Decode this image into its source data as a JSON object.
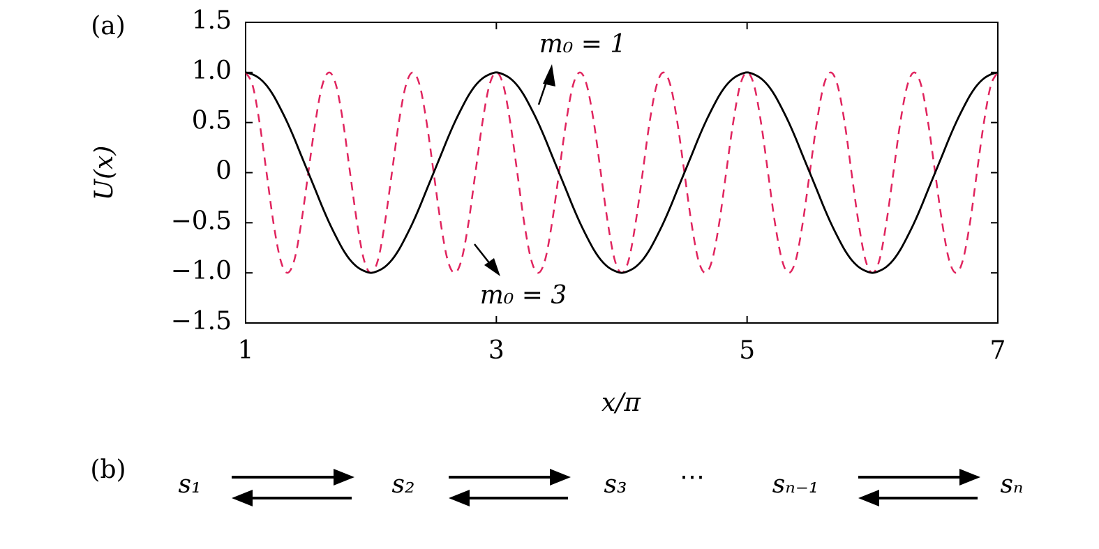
{
  "chart_data": {
    "type": "line",
    "panel_label": "(a)",
    "xlabel": "x/π",
    "ylabel": "U(x)",
    "x": [
      1,
      1.056,
      1.111,
      1.167,
      1.222,
      1.278,
      1.333,
      1.389,
      1.444,
      1.5,
      1.556,
      1.611,
      1.667,
      1.722,
      1.778,
      1.833,
      1.889,
      1.944,
      2,
      2.056,
      2.111,
      2.167,
      2.222,
      2.278,
      2.333,
      2.389,
      2.444,
      2.5,
      2.556,
      2.611,
      2.667,
      2.722,
      2.778,
      2.833,
      2.889,
      2.944,
      3,
      3.056,
      3.111,
      3.167,
      3.222,
      3.278,
      3.333,
      3.389,
      3.444,
      3.5,
      3.556,
      3.611,
      3.667,
      3.722,
      3.778,
      3.833,
      3.889,
      3.944,
      4,
      4.056,
      4.111,
      4.167,
      4.222,
      4.278,
      4.333,
      4.389,
      4.444,
      4.5,
      4.556,
      4.611,
      4.667,
      4.722,
      4.778,
      4.833,
      4.889,
      4.944,
      5,
      5.056,
      5.111,
      5.167,
      5.222,
      5.278,
      5.333,
      5.389,
      5.444,
      5.5,
      5.556,
      5.611,
      5.667,
      5.722,
      5.778,
      5.833,
      5.889,
      5.944,
      6,
      6.056,
      6.111,
      6.167,
      6.222,
      6.278,
      6.333,
      6.389,
      6.444,
      6.5,
      6.556,
      6.611,
      6.667,
      6.722,
      6.778,
      6.833,
      6.889,
      6.944,
      7
    ],
    "series": [
      {
        "color": "#000000",
        "dash": false,
        "values": [
          1,
          0.98,
          0.94,
          0.87,
          0.77,
          0.64,
          0.5,
          0.34,
          0.17,
          0,
          -0.17,
          -0.34,
          -0.5,
          -0.64,
          -0.77,
          -0.87,
          -0.94,
          -0.98,
          -1,
          -0.98,
          -0.94,
          -0.87,
          -0.77,
          -0.64,
          -0.5,
          -0.34,
          -0.17,
          0,
          0.17,
          0.34,
          0.5,
          0.64,
          0.77,
          0.87,
          0.94,
          0.98,
          1,
          0.98,
          0.94,
          0.87,
          0.77,
          0.64,
          0.5,
          0.34,
          0.17,
          0,
          -0.17,
          -0.34,
          -0.5,
          -0.64,
          -0.77,
          -0.87,
          -0.94,
          -0.98,
          -1,
          -0.98,
          -0.94,
          -0.87,
          -0.77,
          -0.64,
          -0.5,
          -0.34,
          -0.17,
          0,
          0.17,
          0.34,
          0.5,
          0.64,
          0.77,
          0.87,
          0.94,
          0.98,
          1,
          0.98,
          0.94,
          0.87,
          0.77,
          0.64,
          0.5,
          0.34,
          0.17,
          0,
          -0.17,
          -0.34,
          -0.5,
          -0.64,
          -0.77,
          -0.87,
          -0.94,
          -0.98,
          -1,
          -0.98,
          -0.94,
          -0.87,
          -0.77,
          -0.64,
          -0.5,
          -0.34,
          -0.17,
          0,
          0.17,
          0.34,
          0.5,
          0.64,
          0.77,
          0.87,
          0.94,
          0.98,
          1
        ]
      },
      {
        "color": "#e0245e",
        "dash": true,
        "values": [
          1,
          0.87,
          0.5,
          0,
          -0.5,
          -0.87,
          -1,
          -0.87,
          -0.5,
          0,
          0.5,
          0.87,
          1,
          0.87,
          0.5,
          0,
          -0.5,
          -0.87,
          -1,
          -0.87,
          -0.5,
          0,
          0.5,
          0.87,
          1,
          0.87,
          0.5,
          0,
          -0.5,
          -0.87,
          -1,
          -0.87,
          -0.5,
          0,
          0.5,
          0.87,
          1,
          0.87,
          0.5,
          0,
          -0.5,
          -0.87,
          -1,
          -0.87,
          -0.5,
          0,
          0.5,
          0.87,
          1,
          0.87,
          0.5,
          0,
          -0.5,
          -0.87,
          -1,
          -0.87,
          -0.5,
          0,
          0.5,
          0.87,
          1,
          0.87,
          0.5,
          0,
          -0.5,
          -0.87,
          -1,
          -0.87,
          -0.5,
          0,
          0.5,
          0.87,
          1,
          0.87,
          0.5,
          0,
          -0.5,
          -0.87,
          -1,
          -0.87,
          -0.5,
          0,
          0.5,
          0.87,
          1,
          0.87,
          0.5,
          0,
          -0.5,
          -0.87,
          -1,
          -0.87,
          -0.5,
          0,
          0.5,
          0.87,
          1,
          0.87,
          0.5,
          0,
          -0.5,
          -0.87,
          -1,
          -0.87,
          -0.5,
          0,
          0.5,
          0.87,
          1
        ]
      }
    ],
    "annotations": [
      "m₀ = 1",
      "m₀ = 3"
    ],
    "xlim": [
      1,
      7
    ],
    "xticks": [
      1,
      3,
      5,
      7
    ],
    "ylim": [
      -1.5,
      1.5
    ],
    "yticks": [
      {
        "value": 1.5,
        "label": "1.5"
      },
      {
        "value": 1,
        "label": "1.0"
      },
      {
        "value": 0.5,
        "label": "0.5"
      },
      0,
      {
        "value": -0.5,
        "label": "−0.5"
      },
      {
        "value": -1,
        "label": "−1.0"
      },
      {
        "value": -1.5,
        "label": "−1.5"
      }
    ]
  },
  "scheme": {
    "label": "(b)",
    "states": [
      "s₁",
      "s₂",
      "s₃",
      "⋯",
      "sₙ₋₁",
      "sₙ"
    ]
  }
}
